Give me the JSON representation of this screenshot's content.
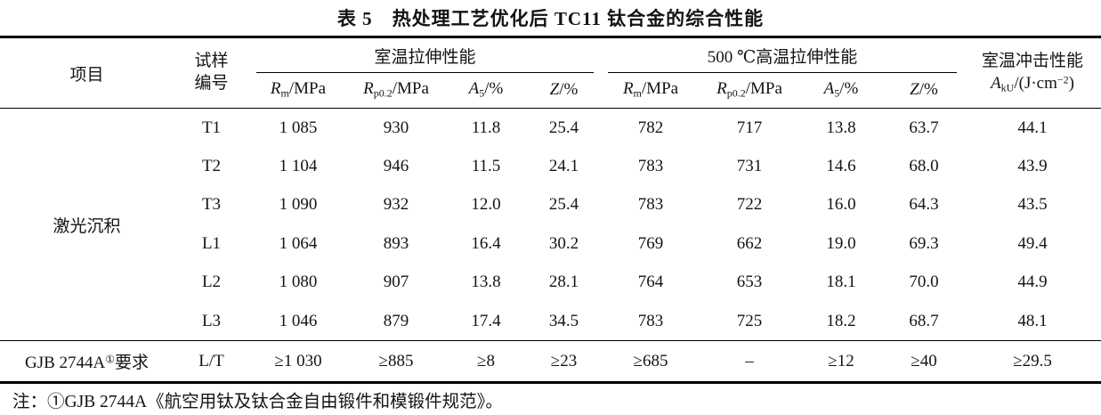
{
  "title": "表 5　热处理工艺优化后 TC11 钛合金的综合性能",
  "headers": {
    "item": "项目",
    "sample_line1": "试样",
    "sample_line2": "编号",
    "group_rt": "室温拉伸性能",
    "group_ht": "500 ℃高温拉伸性能",
    "impact_line1": "室温冲击性能",
    "impact_formula": {
      "sym": "A",
      "sub": "kU",
      "pre": "/(J·cm",
      "sup": "−2",
      "post": ")"
    },
    "subcols": [
      {
        "sym": "R",
        "sub": "m",
        "rest": "/MPa"
      },
      {
        "sym": "R",
        "sub": "p0.2",
        "rest": "/MPa"
      },
      {
        "sym": "A",
        "sub": "5",
        "rest": "/%"
      },
      {
        "sym": "Z",
        "sub": "",
        "rest": "/%"
      }
    ]
  },
  "body": {
    "group_label": "激光沉积",
    "rows": [
      {
        "id": "T1",
        "values": [
          "1 085",
          "930",
          "11.8",
          "25.4",
          "782",
          "717",
          "13.8",
          "63.7",
          "44.1"
        ]
      },
      {
        "id": "T2",
        "values": [
          "1 104",
          "946",
          "11.5",
          "24.1",
          "783",
          "731",
          "14.6",
          "68.0",
          "43.9"
        ]
      },
      {
        "id": "T3",
        "values": [
          "1 090",
          "932",
          "12.0",
          "25.4",
          "783",
          "722",
          "16.0",
          "64.3",
          "43.5"
        ]
      },
      {
        "id": "L1",
        "values": [
          "1 064",
          "893",
          "16.4",
          "30.2",
          "769",
          "662",
          "19.0",
          "69.3",
          "49.4"
        ]
      },
      {
        "id": "L2",
        "values": [
          "1 080",
          "907",
          "13.8",
          "28.1",
          "764",
          "653",
          "18.1",
          "70.0",
          "44.9"
        ]
      },
      {
        "id": "L3",
        "values": [
          "1 046",
          "879",
          "17.4",
          "34.5",
          "783",
          "725",
          "18.2",
          "68.7",
          "48.1"
        ]
      }
    ],
    "requirement": {
      "label_pre": "GJB 2744A",
      "label_sup": "①",
      "label_post": "要求",
      "id": "L/T",
      "values": [
        "≥1 030",
        "≥885",
        "≥8",
        "≥23",
        "≥685",
        "–",
        "≥12",
        "≥40",
        "≥29.5"
      ]
    }
  },
  "note": "注：①GJB 2744A《航空用钛及钛合金自由锻件和模锻件规范》。"
}
